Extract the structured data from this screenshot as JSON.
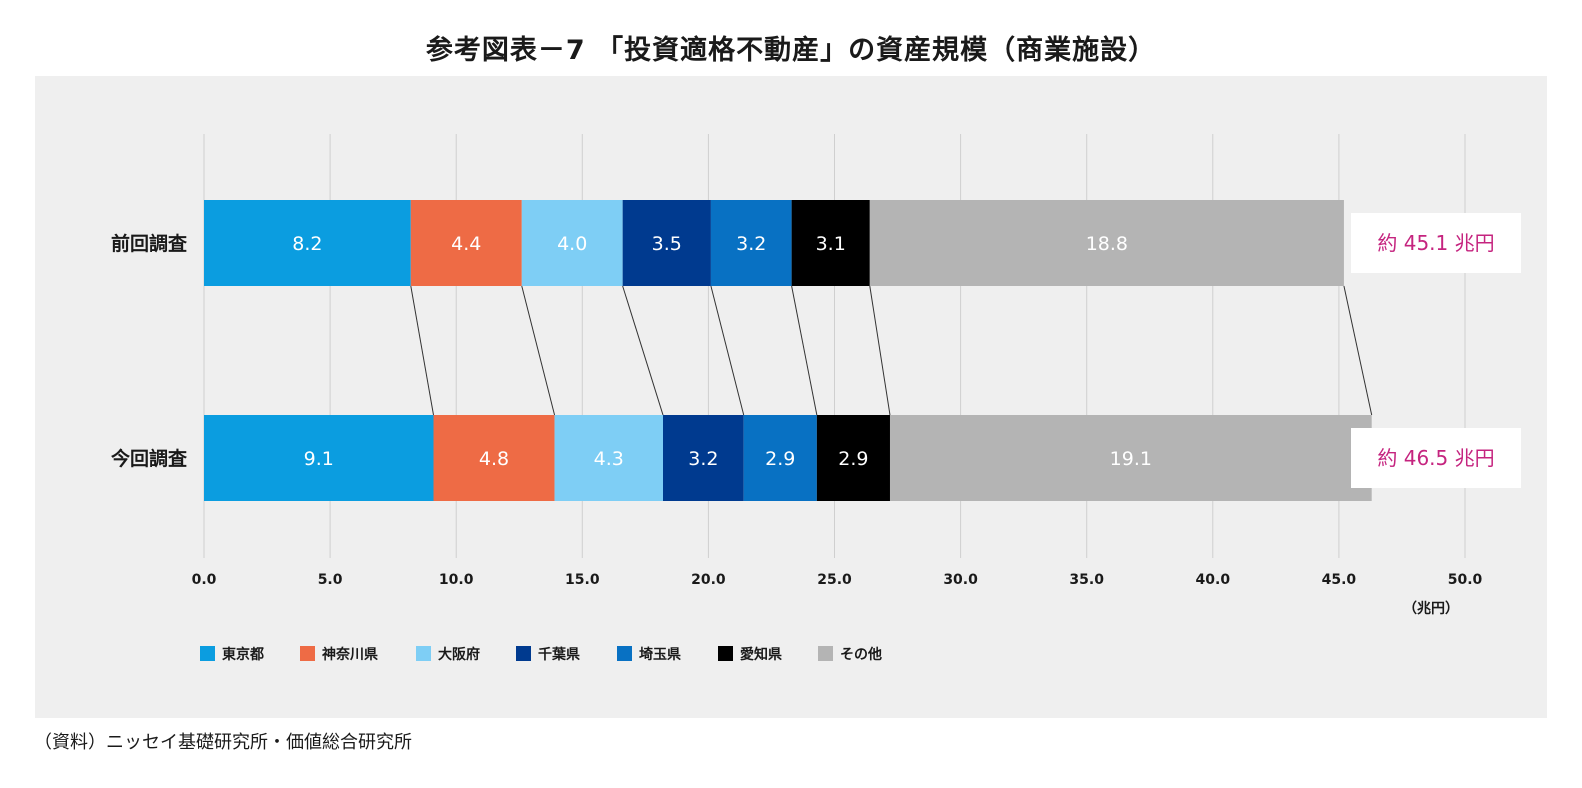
{
  "chart_data": {
    "type": "bar",
    "orientation": "horizontal",
    "stacked": true,
    "title": "参考図表－7 「投資適格不動産」の資産規模（商業施設）",
    "categories": [
      "前回調査",
      "今回調査"
    ],
    "series": [
      {
        "name": "東京都",
        "color": "#0b9de0",
        "label_color": "#ffffff",
        "values": [
          8.2,
          9.1
        ],
        "labels": [
          "8.2",
          "9.1"
        ]
      },
      {
        "name": "神奈川県",
        "color": "#ee6b45",
        "label_color": "#ffffff",
        "values": [
          4.4,
          4.8
        ],
        "labels": [
          "4.4",
          "4.8"
        ]
      },
      {
        "name": "大阪府",
        "color": "#7ecef5",
        "label_color": "#ffffff",
        "values": [
          4.0,
          4.3
        ],
        "labels": [
          "4.0",
          "4.3"
        ]
      },
      {
        "name": "千葉県",
        "color": "#003a8f",
        "label_color": "#ffffff",
        "values": [
          3.5,
          3.2
        ],
        "labels": [
          "3.5",
          "3.2"
        ]
      },
      {
        "name": "埼玉県",
        "color": "#0871c3",
        "label_color": "#ffffff",
        "values": [
          3.2,
          2.9
        ],
        "labels": [
          "3.2",
          "2.9"
        ]
      },
      {
        "name": "愛知県",
        "color": "#000000",
        "label_color": "#ffffff",
        "values": [
          3.1,
          2.9
        ],
        "labels": [
          "3.1",
          "2.9"
        ]
      },
      {
        "name": "その他",
        "color": "#b4b4b4",
        "label_color": "#ffffff",
        "values": [
          18.8,
          19.1
        ],
        "labels": [
          "18.8",
          "19.1"
        ]
      }
    ],
    "totals": [
      "約 45.1 兆円",
      "約 46.5 兆円"
    ],
    "xlim": [
      0,
      50
    ],
    "xticks": [
      0,
      5,
      10,
      15,
      20,
      25,
      30,
      35,
      40,
      45,
      50
    ],
    "xtick_labels": [
      "0.0",
      "5.0",
      "10.0",
      "15.0",
      "20.0",
      "25.0",
      "30.0",
      "35.0",
      "40.0",
      "45.0",
      "50.0"
    ],
    "xunit": "（兆円）",
    "grid": true,
    "legend_position": "bottom-left"
  },
  "source": "（資料）ニッセイ基礎研究所・価値総合研究所"
}
